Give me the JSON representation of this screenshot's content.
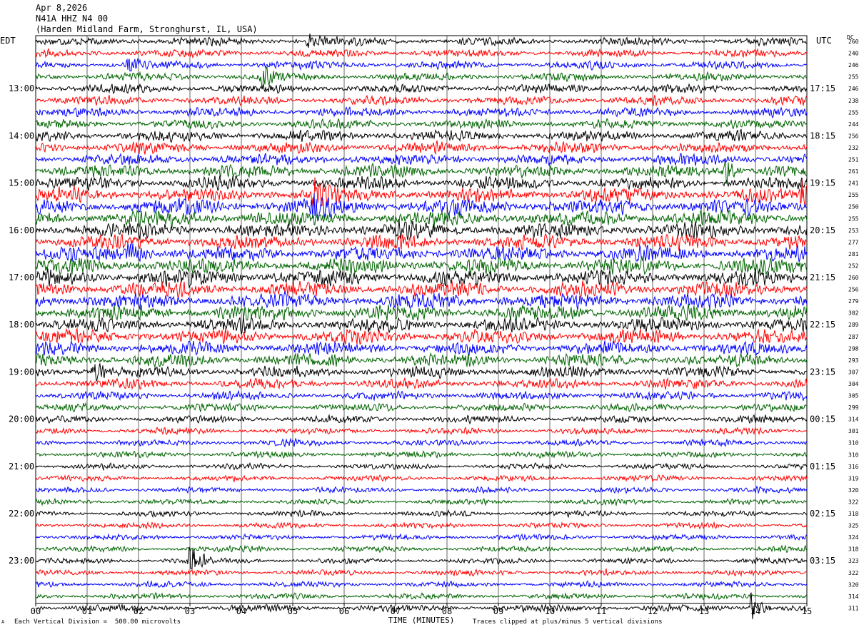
{
  "header": {
    "date": "Apr 8,2026",
    "station": "N41A HHZ N4 00",
    "location": "(Harden Midland Farm, Stronghurst, IL, USA)"
  },
  "left_tz": "EDT",
  "right_tz": "UTC",
  "dc_label": "DC",
  "footer": {
    "scale": "Each Vertical Division =  500.00 microvolts",
    "clip": "Traces clipped at plus/minus 5 vertical divisions",
    "marker": "A"
  },
  "chart_data": {
    "type": "line",
    "title": "",
    "xlabel": "TIME (MINUTES)",
    "xlim": [
      0,
      15
    ],
    "x_ticks": [
      "00",
      "01",
      "02",
      "03",
      "04",
      "05",
      "06",
      "07",
      "08",
      "09",
      "10",
      "11",
      "12",
      "13",
      "14",
      "15"
    ],
    "rows_per_hour": 4,
    "trace_colors": [
      "#000000",
      "#ff0000",
      "#0000ff",
      "#006400"
    ],
    "left_hour_labels": [
      "13:00",
      "14:00",
      "15:00",
      "16:00",
      "17:00",
      "18:00",
      "19:00",
      "20:00",
      "21:00",
      "22:00",
      "23:00"
    ],
    "right_hour_labels": [
      "17:15",
      "18:15",
      "19:15",
      "20:15",
      "21:15",
      "22:15",
      "23:15",
      "00:15",
      "01:15",
      "02:15",
      "03:15"
    ],
    "dc_offsets": [
      260,
      240,
      246,
      255,
      246,
      238,
      255,
      244,
      256,
      232,
      251,
      261,
      241,
      255,
      250,
      255,
      253,
      277,
      281,
      252,
      260,
      256,
      279,
      302,
      289,
      287,
      298,
      293,
      307,
      304,
      305,
      299,
      314,
      301,
      310,
      310,
      316,
      319,
      320,
      322,
      318,
      325,
      324,
      318,
      323,
      322,
      320,
      314,
      311
    ],
    "row_amplitude": [
      0.28,
      0.28,
      0.28,
      0.28,
      0.32,
      0.32,
      0.32,
      0.32,
      0.38,
      0.38,
      0.4,
      0.45,
      0.45,
      0.5,
      0.55,
      0.55,
      0.55,
      0.55,
      0.55,
      0.55,
      0.55,
      0.55,
      0.55,
      0.55,
      0.5,
      0.5,
      0.45,
      0.45,
      0.4,
      0.35,
      0.3,
      0.28,
      0.25,
      0.22,
      0.22,
      0.22,
      0.2,
      0.2,
      0.2,
      0.2,
      0.2,
      0.2,
      0.2,
      0.2,
      0.2,
      0.2,
      0.2,
      0.2,
      0.25
    ],
    "events": [
      {
        "row": 44,
        "minute": 3.0,
        "amplitude": 1.6
      },
      {
        "row": 48,
        "minute": 13.9,
        "amplitude": 1.4
      },
      {
        "row": 11,
        "minute": 13.4,
        "amplitude": 1.2
      },
      {
        "row": 13,
        "minute": 5.4,
        "amplitude": 1.3
      },
      {
        "row": 13,
        "minute": 14.9,
        "amplitude": 1.2
      },
      {
        "row": 14,
        "minute": 5.4,
        "amplitude": 1.0
      },
      {
        "row": 18,
        "minute": 1.8,
        "amplitude": 1.0
      },
      {
        "row": 28,
        "minute": 1.1,
        "amplitude": 0.9
      },
      {
        "row": 3,
        "minute": 4.4,
        "amplitude": 0.8
      },
      {
        "row": 0,
        "minute": 5.3,
        "amplitude": 0.6
      },
      {
        "row": 2,
        "minute": 1.8,
        "amplitude": 0.6
      }
    ]
  }
}
